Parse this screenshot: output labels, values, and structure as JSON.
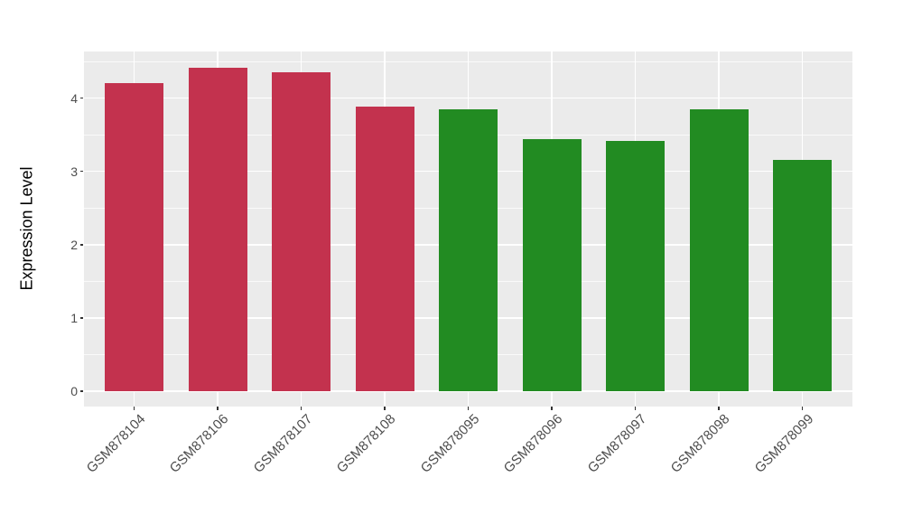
{
  "figure": {
    "background": "#FFFFFF"
  },
  "chart_data": {
    "type": "bar",
    "title": "",
    "xlabel": "",
    "ylabel": "Expression Level",
    "categories": [
      "GSM878104",
      "GSM878106",
      "GSM878107",
      "GSM878108",
      "GSM878095",
      "GSM878096",
      "GSM878097",
      "GSM878098",
      "GSM878099"
    ],
    "values": [
      4.2,
      4.42,
      4.35,
      3.88,
      3.85,
      3.44,
      3.42,
      3.85,
      3.16
    ],
    "bar_colors": [
      "#C3324E",
      "#C3324E",
      "#C3324E",
      "#C3324E",
      "#228B22",
      "#228B22",
      "#228B22",
      "#228B22",
      "#228B22"
    ],
    "ylim": [
      -0.21,
      4.63
    ],
    "yticks": [
      0,
      1,
      2,
      3,
      4
    ],
    "yticks_minor": [
      0.5,
      1.5,
      2.5,
      3.5,
      4.5
    ],
    "x_tick_rotation_deg": 45,
    "legend": "none",
    "grid": {
      "horizontal": "major+minor",
      "vertical": "major"
    },
    "style": {
      "panel_bg": "#EBEBEB",
      "grid_color": "#FFFFFF",
      "tick_mark_color": "#333333",
      "tick_label_color": "#4D4D4D",
      "axis_title_color": "#000000",
      "bar_red": "#C3324E",
      "bar_green": "#228B22"
    }
  }
}
